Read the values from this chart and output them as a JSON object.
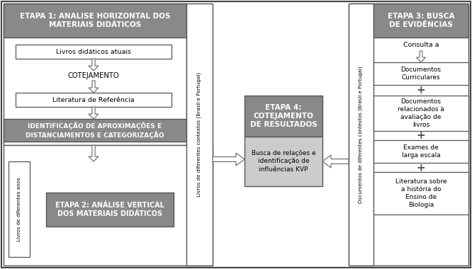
{
  "etapa1_header": "ETAPA 1: ANALISE HORIZONTAL DOS\nMATERIAIS DIDÁTICOS",
  "etapa2_text": "ETAPA 2: ANÁLISE VERTICAL\nDOS MATERIAIS DIDÁTICOS",
  "etapa3_header": "ETAPA 3: BUSCA\nDE EVIDÊNCIAS",
  "etapa4_header": "ETAPA 4:\nCOTEJAMENTO\nDE RESULTADOS",
  "etapa4_sub": "Busca de relações e\nidentificação de\ninfluências KVP",
  "box1_text": "Livros didáticos atuais",
  "cotejamento_text": "COTEJAMENTO",
  "box2_text": "Literatura de Referência",
  "id_box_text": "IDENTIFICAÇÃO DE APROXIMAÇÕES E\nDISTANCIAMENTOS E CATEGORIZAÇÃO",
  "livros_anos_text": "Livros de diferentes anos",
  "vertical_label_left": "Livros de diferentes contextos (Brasil e Portugal)",
  "vertical_label_right": "Documentos de diferentes contextos (Brasil e Portugal)",
  "consulta_text": "Consulta a",
  "doc1_text": "Documentos\nCurriculares",
  "doc2_text": "Documentos\nrelacionados à\navaliação de\nlivros",
  "doc3_text": "Exames de\nlarga escala",
  "doc4_text": "Literatura sobre\na história do\nEnsino de\nBiologia",
  "gray_header": "#898989",
  "gray_mid": "#b0b0b0",
  "white": "#ffffff",
  "black": "#222222",
  "border": "#555555"
}
